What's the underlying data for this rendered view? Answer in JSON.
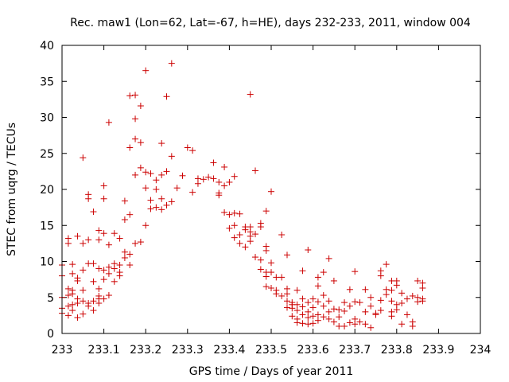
{
  "chart_data": {
    "type": "scatter",
    "title": "Rec. maw1 (Lon=62, Lat=-67, h=HE), days 232-233, 2011, window 004",
    "xlabel": "GPS time / Days of year 2011",
    "ylabel": "STEC from uqrg / TECUs",
    "xlim": [
      233,
      234
    ],
    "ylim": [
      0,
      40
    ],
    "x_ticks": [
      "233",
      "233.1",
      "233.2",
      "233.3",
      "233.4",
      "233.5",
      "233.6",
      "233.7",
      "233.8",
      "233.9",
      "234"
    ],
    "y_ticks": [
      "0",
      "5",
      "10",
      "15",
      "20",
      "25",
      "30",
      "35",
      "40"
    ],
    "grid": false,
    "marker": "+",
    "marker_color": "#cc0000",
    "series": [
      {
        "points": [
          [
            233.0,
            9.5
          ],
          [
            233.0,
            8.0
          ],
          [
            233.0,
            5.0
          ],
          [
            233.0,
            3.5
          ],
          [
            233.0,
            2.8
          ],
          [
            233.015,
            13.2
          ],
          [
            233.015,
            12.5
          ],
          [
            233.015,
            6.2
          ],
          [
            233.015,
            5.3
          ],
          [
            233.015,
            3.8
          ],
          [
            233.015,
            2.5
          ],
          [
            233.025,
            9.6
          ],
          [
            233.025,
            8.3
          ],
          [
            233.025,
            6.0
          ],
          [
            233.025,
            5.5
          ],
          [
            233.025,
            4.0
          ],
          [
            233.025,
            3.2
          ],
          [
            233.037,
            13.5
          ],
          [
            233.037,
            7.7
          ],
          [
            233.037,
            7.3
          ],
          [
            233.037,
            4.8
          ],
          [
            233.037,
            4.2
          ],
          [
            233.037,
            2.2
          ],
          [
            233.05,
            24.4
          ],
          [
            233.05,
            12.5
          ],
          [
            233.05,
            8.8
          ],
          [
            233.05,
            6.0
          ],
          [
            233.05,
            4.5
          ],
          [
            233.05,
            2.7
          ],
          [
            233.063,
            19.3
          ],
          [
            233.063,
            18.7
          ],
          [
            233.063,
            13.0
          ],
          [
            233.063,
            9.7
          ],
          [
            233.063,
            4.2
          ],
          [
            233.063,
            3.8
          ],
          [
            233.075,
            16.9
          ],
          [
            233.075,
            9.7
          ],
          [
            233.075,
            7.2
          ],
          [
            233.075,
            4.5
          ],
          [
            233.075,
            3.2
          ],
          [
            233.088,
            14.3
          ],
          [
            233.088,
            13.0
          ],
          [
            233.088,
            9.0
          ],
          [
            233.088,
            6.2
          ],
          [
            233.088,
            5.2
          ],
          [
            233.088,
            4.8
          ],
          [
            233.088,
            4.2
          ],
          [
            233.1,
            20.5
          ],
          [
            233.1,
            18.7
          ],
          [
            233.1,
            13.9
          ],
          [
            233.1,
            8.8
          ],
          [
            233.1,
            7.5
          ],
          [
            233.1,
            4.8
          ],
          [
            233.112,
            29.3
          ],
          [
            233.112,
            12.3
          ],
          [
            233.112,
            9.2
          ],
          [
            233.112,
            8.3
          ],
          [
            233.112,
            5.3
          ],
          [
            233.125,
            13.9
          ],
          [
            233.125,
            9.7
          ],
          [
            233.125,
            9.0
          ],
          [
            233.125,
            7.2
          ],
          [
            233.138,
            13.2
          ],
          [
            233.138,
            9.5
          ],
          [
            233.138,
            8.5
          ],
          [
            233.138,
            8.0
          ],
          [
            233.15,
            18.4
          ],
          [
            233.15,
            15.8
          ],
          [
            233.15,
            11.3
          ],
          [
            233.15,
            10.5
          ],
          [
            233.162,
            33.0
          ],
          [
            233.162,
            25.8
          ],
          [
            233.162,
            16.5
          ],
          [
            233.162,
            11.0
          ],
          [
            233.162,
            9.5
          ],
          [
            233.175,
            33.1
          ],
          [
            233.175,
            29.8
          ],
          [
            233.175,
            27.0
          ],
          [
            233.175,
            22.0
          ],
          [
            233.175,
            12.5
          ],
          [
            233.188,
            31.6
          ],
          [
            233.188,
            26.5
          ],
          [
            233.188,
            23.0
          ],
          [
            233.188,
            12.7
          ],
          [
            233.2,
            36.5
          ],
          [
            233.2,
            22.4
          ],
          [
            233.2,
            20.2
          ],
          [
            233.2,
            15.0
          ],
          [
            233.212,
            22.2
          ],
          [
            233.212,
            18.5
          ],
          [
            233.212,
            17.3
          ],
          [
            233.225,
            21.3
          ],
          [
            233.225,
            20.0
          ],
          [
            233.225,
            17.5
          ],
          [
            233.238,
            26.4
          ],
          [
            233.238,
            22.0
          ],
          [
            233.238,
            18.7
          ],
          [
            233.238,
            17.2
          ],
          [
            233.25,
            32.9
          ],
          [
            233.25,
            22.5
          ],
          [
            233.25,
            17.8
          ],
          [
            233.262,
            37.5
          ],
          [
            233.262,
            24.6
          ],
          [
            233.262,
            18.3
          ],
          [
            233.275,
            20.2
          ],
          [
            233.288,
            21.9
          ],
          [
            233.3,
            25.8
          ],
          [
            233.312,
            25.4
          ],
          [
            233.312,
            19.6
          ],
          [
            233.325,
            21.5
          ],
          [
            233.325,
            20.8
          ],
          [
            233.338,
            21.4
          ],
          [
            233.35,
            21.7
          ],
          [
            233.362,
            23.7
          ],
          [
            233.362,
            21.5
          ],
          [
            233.375,
            21.0
          ],
          [
            233.375,
            19.5
          ],
          [
            233.375,
            19.2
          ],
          [
            233.388,
            23.1
          ],
          [
            233.388,
            20.5
          ],
          [
            233.388,
            16.8
          ],
          [
            233.4,
            21.0
          ],
          [
            233.4,
            16.5
          ],
          [
            233.4,
            14.6
          ],
          [
            233.412,
            21.8
          ],
          [
            233.412,
            16.7
          ],
          [
            233.412,
            13.3
          ],
          [
            233.412,
            15.0
          ],
          [
            233.425,
            16.6
          ],
          [
            233.425,
            13.7
          ],
          [
            233.425,
            12.5
          ],
          [
            233.438,
            14.4
          ],
          [
            233.438,
            14.8
          ],
          [
            233.438,
            12.0
          ],
          [
            233.45,
            33.2
          ],
          [
            233.45,
            14.8
          ],
          [
            233.45,
            14.1
          ],
          [
            233.45,
            13.5
          ],
          [
            233.45,
            12.8
          ],
          [
            233.462,
            22.6
          ],
          [
            233.462,
            13.8
          ],
          [
            233.462,
            10.6
          ],
          [
            233.475,
            15.3
          ],
          [
            233.475,
            14.8
          ],
          [
            233.475,
            10.2
          ],
          [
            233.475,
            8.9
          ],
          [
            233.488,
            17.0
          ],
          [
            233.488,
            12.1
          ],
          [
            233.488,
            11.5
          ],
          [
            233.488,
            8.5
          ],
          [
            233.488,
            7.9
          ],
          [
            233.488,
            6.5
          ],
          [
            233.5,
            19.7
          ],
          [
            233.5,
            9.8
          ],
          [
            233.5,
            8.5
          ],
          [
            233.5,
            6.3
          ],
          [
            233.512,
            7.8
          ],
          [
            233.512,
            6.0
          ],
          [
            233.512,
            5.5
          ],
          [
            233.525,
            13.7
          ],
          [
            233.525,
            7.8
          ],
          [
            233.525,
            5.2
          ],
          [
            233.538,
            10.9
          ],
          [
            233.538,
            6.2
          ],
          [
            233.538,
            5.5
          ],
          [
            233.538,
            4.5
          ],
          [
            233.538,
            3.6
          ],
          [
            233.55,
            4.3
          ],
          [
            233.55,
            4.0
          ],
          [
            233.55,
            3.5
          ],
          [
            233.55,
            2.4
          ],
          [
            233.562,
            6.0
          ],
          [
            233.562,
            4.0
          ],
          [
            233.562,
            3.2
          ],
          [
            233.562,
            2.0
          ],
          [
            233.562,
            1.5
          ],
          [
            233.575,
            8.7
          ],
          [
            233.575,
            4.8
          ],
          [
            233.575,
            3.7
          ],
          [
            233.575,
            2.6
          ],
          [
            233.575,
            1.4
          ],
          [
            233.588,
            11.6
          ],
          [
            233.588,
            4.3
          ],
          [
            233.588,
            3.0
          ],
          [
            233.588,
            2.2
          ],
          [
            233.588,
            1.3
          ],
          [
            233.6,
            4.8
          ],
          [
            233.6,
            3.6
          ],
          [
            233.6,
            2.4
          ],
          [
            233.6,
            1.4
          ],
          [
            233.612,
            7.8
          ],
          [
            233.612,
            6.6
          ],
          [
            233.612,
            4.4
          ],
          [
            233.612,
            2.6
          ],
          [
            233.612,
            1.8
          ],
          [
            233.625,
            8.5
          ],
          [
            233.625,
            5.3
          ],
          [
            233.625,
            3.8
          ],
          [
            233.625,
            2.3
          ],
          [
            233.638,
            10.4
          ],
          [
            233.638,
            4.5
          ],
          [
            233.638,
            3.0
          ],
          [
            233.638,
            2.0
          ],
          [
            233.65,
            7.3
          ],
          [
            233.65,
            3.4
          ],
          [
            233.65,
            1.6
          ],
          [
            233.662,
            3.3
          ],
          [
            233.662,
            2.3
          ],
          [
            233.662,
            1.0
          ],
          [
            233.675,
            4.3
          ],
          [
            233.675,
            3.1
          ],
          [
            233.675,
            1.0
          ],
          [
            233.688,
            6.1
          ],
          [
            233.688,
            3.8
          ],
          [
            233.688,
            1.5
          ],
          [
            233.7,
            8.6
          ],
          [
            233.7,
            4.4
          ],
          [
            233.7,
            2.0
          ],
          [
            233.7,
            1.3
          ],
          [
            233.712,
            4.3
          ],
          [
            233.712,
            1.6
          ],
          [
            233.725,
            6.1
          ],
          [
            233.725,
            3.0
          ],
          [
            233.725,
            1.3
          ],
          [
            233.738,
            5.0
          ],
          [
            233.738,
            3.8
          ],
          [
            233.738,
            0.8
          ],
          [
            233.75,
            2.6
          ],
          [
            233.75,
            2.8
          ],
          [
            233.762,
            8.7
          ],
          [
            233.762,
            8.0
          ],
          [
            233.762,
            4.6
          ],
          [
            233.762,
            3.2
          ],
          [
            233.775,
            9.6
          ],
          [
            233.775,
            6.1
          ],
          [
            233.775,
            5.4
          ],
          [
            233.788,
            7.3
          ],
          [
            233.788,
            6.0
          ],
          [
            233.788,
            4.5
          ],
          [
            233.788,
            3.0
          ],
          [
            233.788,
            2.4
          ],
          [
            233.8,
            7.3
          ],
          [
            233.8,
            6.7
          ],
          [
            233.8,
            4.0
          ],
          [
            233.8,
            3.3
          ],
          [
            233.812,
            5.6
          ],
          [
            233.812,
            4.2
          ],
          [
            233.812,
            1.3
          ],
          [
            233.825,
            4.8
          ],
          [
            233.825,
            2.6
          ],
          [
            233.838,
            5.2
          ],
          [
            233.838,
            1.0
          ],
          [
            233.838,
            1.6
          ],
          [
            233.85,
            7.3
          ],
          [
            233.85,
            5.0
          ],
          [
            233.85,
            4.4
          ],
          [
            233.862,
            7.0
          ],
          [
            233.862,
            6.3
          ],
          [
            233.862,
            4.8
          ],
          [
            233.862,
            4.5
          ]
        ]
      }
    ]
  }
}
